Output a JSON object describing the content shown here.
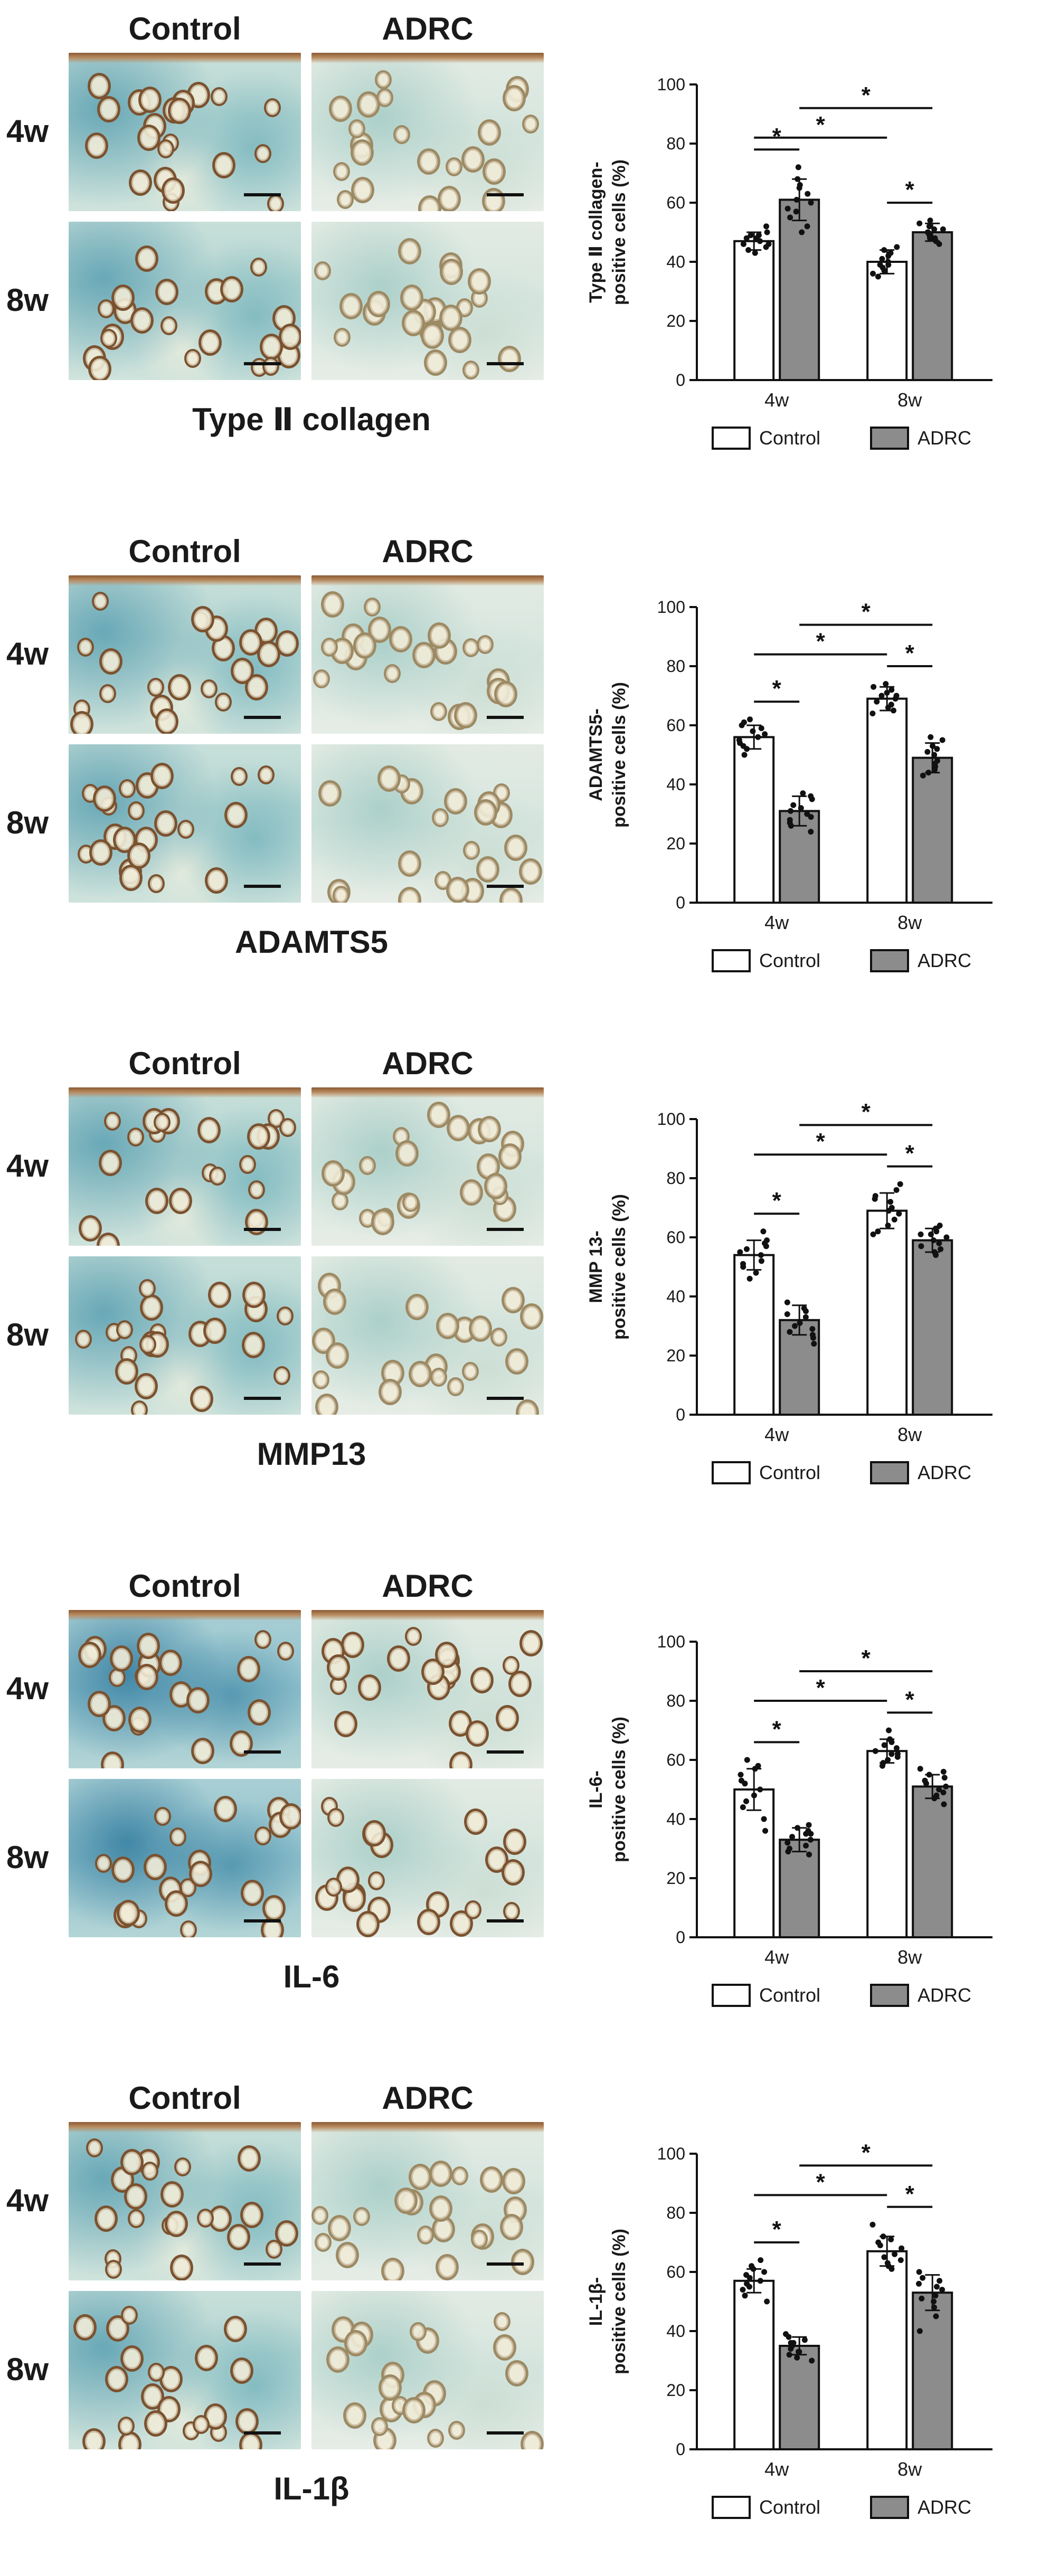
{
  "panels": [
    {
      "stain": "Type Ⅱ collagen",
      "columns": [
        "Control",
        "ADRC"
      ],
      "rows": [
        "4w",
        "8w"
      ],
      "chart": {
        "ylabel_lines": [
          "Type Ⅱ collagen-",
          "positive cells (%)"
        ],
        "pairs": [
          [
            0,
            1
          ],
          [
            2,
            3
          ],
          [
            0,
            2
          ],
          [
            1,
            3
          ]
        ]
      }
    },
    {
      "stain": "ADAMTS5",
      "columns": [
        "Control",
        "ADRC"
      ],
      "rows": [
        "4w",
        "8w"
      ],
      "chart": {
        "ylabel_lines": [
          "ADAMTS5-",
          "positive cells (%)"
        ],
        "pairs": [
          [
            0,
            1
          ],
          [
            2,
            3
          ],
          [
            0,
            2
          ],
          [
            1,
            3
          ]
        ]
      }
    },
    {
      "stain": "MMP13",
      "columns": [
        "Control",
        "ADRC"
      ],
      "rows": [
        "4w",
        "8w"
      ],
      "chart": {
        "ylabel_lines": [
          "MMP 13-",
          "positive cells (%)"
        ],
        "pairs": [
          [
            0,
            1
          ],
          [
            2,
            3
          ],
          [
            0,
            2
          ],
          [
            1,
            3
          ]
        ]
      }
    },
    {
      "stain": "IL-6",
      "columns": [
        "Control",
        "ADRC"
      ],
      "rows": [
        "4w",
        "8w"
      ],
      "chart": {
        "ylabel_lines": [
          "IL-6-",
          "positive cells (%)"
        ],
        "pairs": [
          [
            0,
            1
          ],
          [
            2,
            3
          ],
          [
            0,
            2
          ],
          [
            1,
            3
          ]
        ]
      }
    },
    {
      "stain": "IL-1β",
      "columns": [
        "Control",
        "ADRC"
      ],
      "rows": [
        "4w",
        "8w"
      ],
      "chart": {
        "ylabel_lines": [
          "IL-1β-",
          "positive cells (%)"
        ],
        "pairs": [
          [
            0,
            1
          ],
          [
            2,
            3
          ],
          [
            0,
            2
          ],
          [
            1,
            3
          ]
        ]
      }
    }
  ],
  "chart_data": [
    {
      "type": "bar",
      "ylabel": "Type Ⅱ collagen-positive cells (%)",
      "categories": [
        "4w",
        "8w"
      ],
      "yticks": [
        "0",
        "20",
        "40",
        "60",
        "80",
        "100"
      ],
      "ylim": [
        0,
        100
      ],
      "significance_marker": "*",
      "series": [
        {
          "name": "Control",
          "color": "#ffffff",
          "values": [
            47,
            40
          ],
          "sd": [
            3,
            4
          ],
          "points": [
            [
              46,
              49,
              44,
              48,
              50,
              47,
              45,
              52,
              48,
              43,
              46,
              49
            ],
            [
              42,
              36,
              39,
              44,
              37,
              41,
              35,
              40,
              43,
              38,
              45,
              39
            ]
          ]
        },
        {
          "name": "ADRC",
          "color": "#8c8c8c",
          "values": [
            61,
            50
          ],
          "sd": [
            7,
            3
          ],
          "points": [
            [
              55,
              65,
              58,
              72,
              60,
              52,
              68,
              63,
              57,
              66,
              50,
              61
            ],
            [
              48,
              51,
              53,
              47,
              50,
              52,
              46,
              49,
              54,
              50,
              48,
              51
            ]
          ]
        }
      ]
    },
    {
      "type": "bar",
      "ylabel": "ADAMTS5-positive cells (%)",
      "categories": [
        "4w",
        "8w"
      ],
      "yticks": [
        "0",
        "20",
        "40",
        "60",
        "80",
        "100"
      ],
      "ylim": [
        0,
        100
      ],
      "significance_marker": "*",
      "series": [
        {
          "name": "Control",
          "color": "#ffffff",
          "values": [
            56,
            69
          ],
          "sd": [
            4,
            4
          ],
          "points": [
            [
              53,
              58,
              60,
              55,
              52,
              57,
              62,
              54,
              59,
              56,
              50,
              61
            ],
            [
              66,
              70,
              73,
              68,
              65,
              71,
              72,
              67,
              69,
              74,
              64,
              70
            ]
          ]
        },
        {
          "name": "ADRC",
          "color": "#8c8c8c",
          "values": [
            31,
            49
          ],
          "sd": [
            5,
            5
          ],
          "points": [
            [
              28,
              33,
              36,
              26,
              31,
              35,
              29,
              24,
              32,
              37,
              30,
              27
            ],
            [
              45,
              52,
              55,
              44,
              48,
              50,
              43,
              53,
              47,
              56,
              46,
              51
            ]
          ]
        }
      ]
    },
    {
      "type": "bar",
      "ylabel": "MMP 13-positive cells (%)",
      "categories": [
        "4w",
        "8w"
      ],
      "yticks": [
        "0",
        "20",
        "40",
        "60",
        "80",
        "100"
      ],
      "ylim": [
        0,
        100
      ],
      "significance_marker": "*",
      "series": [
        {
          "name": "Control",
          "color": "#ffffff",
          "values": [
            54,
            69
          ],
          "sd": [
            5,
            6
          ],
          "points": [
            [
              50,
              56,
              58,
              52,
              48,
              55,
              62,
              51,
              57,
              54,
              46,
              59
            ],
            [
              64,
              72,
              76,
              68,
              61,
              70,
              74,
              66,
              78,
              69,
              62,
              73
            ]
          ]
        },
        {
          "name": "ADRC",
          "color": "#8c8c8c",
          "values": [
            32,
            59
          ],
          "sd": [
            5,
            4
          ],
          "points": [
            [
              28,
              34,
              36,
              26,
              31,
              38,
              30,
              24,
              33,
              35,
              29,
              27
            ],
            [
              55,
              61,
              63,
              57,
              60,
              58,
              62,
              54,
              64,
              59,
              56,
              61
            ]
          ]
        }
      ]
    },
    {
      "type": "bar",
      "ylabel": "IL-6-positive cells (%)",
      "categories": [
        "4w",
        "8w"
      ],
      "yticks": [
        "0",
        "20",
        "40",
        "60",
        "80",
        "100"
      ],
      "ylim": [
        0,
        100
      ],
      "significance_marker": "*",
      "series": [
        {
          "name": "Control",
          "color": "#ffffff",
          "values": [
            50,
            63
          ],
          "sd": [
            7,
            4
          ],
          "points": [
            [
              44,
              55,
              58,
              48,
              36,
              52,
              60,
              46,
              53,
              40,
              57,
              50
            ],
            [
              60,
              65,
              67,
              62,
              58,
              64,
              70,
              61,
              63,
              66,
              59,
              62
            ]
          ]
        },
        {
          "name": "ADRC",
          "color": "#8c8c8c",
          "values": [
            33,
            51
          ],
          "sd": [
            4,
            4
          ],
          "points": [
            [
              30,
              35,
              37,
              31,
              28,
              34,
              36,
              32,
              33,
              38,
              29,
              35
            ],
            [
              47,
              53,
              55,
              49,
              52,
              45,
              57,
              50,
              54,
              48,
              51,
              56
            ]
          ]
        }
      ]
    },
    {
      "type": "bar",
      "ylabel": "IL-1β-positive cells (%)",
      "categories": [
        "4w",
        "8w"
      ],
      "yticks": [
        "0",
        "20",
        "40",
        "60",
        "80",
        "100"
      ],
      "ylim": [
        0,
        100
      ],
      "significance_marker": "*",
      "series": [
        {
          "name": "Control",
          "color": "#ffffff",
          "values": [
            57,
            67
          ],
          "sd": [
            4,
            5
          ],
          "points": [
            [
              54,
              60,
              62,
              56,
              52,
              58,
              64,
              55,
              59,
              50,
              57,
              61
            ],
            [
              63,
              70,
              72,
              65,
              61,
              68,
              76,
              64,
              69,
              66,
              62,
              71
            ]
          ]
        },
        {
          "name": "ADRC",
          "color": "#8c8c8c",
          "values": [
            35,
            53
          ],
          "sd": [
            3,
            6
          ],
          "points": [
            [
              32,
              37,
              36,
              33,
              38,
              31,
              35,
              34,
              39,
              30,
              36,
              33
            ],
            [
              48,
              56,
              58,
              45,
              52,
              60,
              50,
              54,
              40,
              57,
              51,
              55
            ]
          ]
        }
      ]
    }
  ]
}
